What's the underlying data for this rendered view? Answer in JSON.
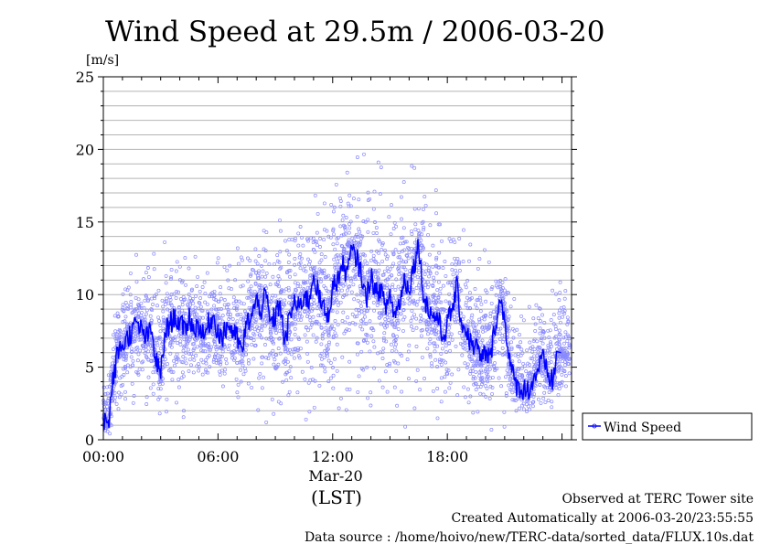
{
  "chart_data": {
    "type": "scatter",
    "title": "Wind Speed at 29.5m / 2006-03-20",
    "ylabel": "[m/s]",
    "xlabel": "(LST)",
    "date_label": "Mar-20",
    "ylim": [
      0,
      25
    ],
    "xlim": [
      "00:00",
      "24:00"
    ],
    "y_ticks": [
      0,
      5,
      10,
      15,
      20,
      25
    ],
    "x_ticks": [
      "00:00",
      "06:00",
      "12:00",
      "18:00"
    ],
    "grid": true,
    "legend_position": "right",
    "series": [
      {
        "name": "Wind Speed",
        "color": "#0000ff",
        "mean_line": {
          "x_hours": [
            0.0,
            0.25,
            0.5,
            0.75,
            1.0,
            1.25,
            1.5,
            1.75,
            2.0,
            2.25,
            2.5,
            2.75,
            3.0,
            3.25,
            3.5,
            3.75,
            4.0,
            4.25,
            4.5,
            4.75,
            5.0,
            5.25,
            5.5,
            5.75,
            6.0,
            6.25,
            6.5,
            6.75,
            7.0,
            7.25,
            7.5,
            7.75,
            8.0,
            8.25,
            8.5,
            8.75,
            9.0,
            9.25,
            9.5,
            9.75,
            10.0,
            10.25,
            10.5,
            10.75,
            11.0,
            11.25,
            11.5,
            11.75,
            12.0,
            12.25,
            12.5,
            12.75,
            13.0,
            13.25,
            13.5,
            13.75,
            14.0,
            14.25,
            14.5,
            14.75,
            15.0,
            15.25,
            15.5,
            15.75,
            16.0,
            16.25,
            16.5,
            16.75,
            17.0,
            17.25,
            17.5,
            17.75,
            18.0,
            18.25,
            18.5,
            18.75,
            19.0,
            19.25,
            19.5,
            19.75,
            20.0,
            20.25,
            20.5,
            20.75,
            21.0,
            21.25,
            21.5,
            21.75,
            22.0,
            22.25,
            22.5,
            22.75,
            23.0,
            23.25,
            23.5,
            23.75
          ],
          "y": [
            1.5,
            1.0,
            4.0,
            6.0,
            6.5,
            7.0,
            7.5,
            8.0,
            7.5,
            7.0,
            7.5,
            5.5,
            4.5,
            7.5,
            8.0,
            8.5,
            8.0,
            7.5,
            8.5,
            7.5,
            8.0,
            7.0,
            8.0,
            8.5,
            7.5,
            7.0,
            8.0,
            7.5,
            7.0,
            6.0,
            8.0,
            8.5,
            9.5,
            9.0,
            10.0,
            8.0,
            8.5,
            9.5,
            6.5,
            8.5,
            9.5,
            9.0,
            10.0,
            9.5,
            11.5,
            10.0,
            9.0,
            8.5,
            10.5,
            11.0,
            12.0,
            11.5,
            13.0,
            12.5,
            11.5,
            9.5,
            11.5,
            10.0,
            10.5,
            9.0,
            10.0,
            8.5,
            9.5,
            11.0,
            10.5,
            12.0,
            13.5,
            10.0,
            9.0,
            8.5,
            8.5,
            7.0,
            8.0,
            9.0,
            10.5,
            8.0,
            7.5,
            6.5,
            6.5,
            5.5,
            6.0,
            5.5,
            8.0,
            9.5,
            8.5,
            5.5,
            4.0,
            3.5,
            3.5,
            3.5,
            4.0,
            5.0,
            5.5,
            4.5,
            4.0,
            6.0
          ]
        },
        "scatter_envelope": {
          "x_hours": [
            0,
            1,
            2,
            3,
            4,
            5,
            6,
            7,
            8,
            9,
            10,
            11,
            12,
            13,
            14,
            15,
            16,
            17,
            18,
            19,
            20,
            21,
            22,
            23,
            24
          ],
          "y_low": [
            0.3,
            1.5,
            2.5,
            1.5,
            2.5,
            3.0,
            3.0,
            2.5,
            2.0,
            2.0,
            1.5,
            1.5,
            1.0,
            1.0,
            1.5,
            1.5,
            1.5,
            1.5,
            1.5,
            1.5,
            1.0,
            1.5,
            1.5,
            1.5,
            1.5
          ],
          "y_high": [
            5.0,
            12.5,
            13.0,
            13.5,
            14.0,
            13.0,
            12.5,
            13.5,
            14.5,
            15.0,
            15.5,
            16.5,
            20.0,
            21.0,
            19.5,
            18.5,
            19.0,
            18.0,
            16.0,
            14.5,
            13.0,
            12.0,
            9.5,
            10.5,
            11.5
          ]
        }
      }
    ]
  },
  "footer": {
    "line1": "Observed at TERC Tower site",
    "line2": "Created Automatically at 2006-03-20/23:55:55",
    "line3": "Data source : /home/hoivo/new/TERC-data/sorted_data/FLUX.10s.dat"
  }
}
